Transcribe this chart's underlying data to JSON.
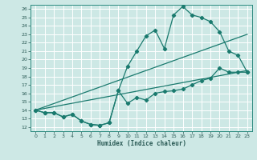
{
  "xlabel": "Humidex (Indice chaleur)",
  "bg_color": "#cde8e5",
  "grid_color": "#b0d8d4",
  "line_color": "#1a7a6e",
  "marker": "D",
  "markersize": 2.2,
  "linewidth": 0.9,
  "xlim": [
    -0.5,
    23.5
  ],
  "ylim": [
    11.5,
    26.5
  ],
  "xticks": [
    0,
    1,
    2,
    3,
    4,
    5,
    6,
    7,
    8,
    9,
    10,
    11,
    12,
    13,
    14,
    15,
    16,
    17,
    18,
    19,
    20,
    21,
    22,
    23
  ],
  "yticks": [
    12,
    13,
    14,
    15,
    16,
    17,
    18,
    19,
    20,
    21,
    22,
    23,
    24,
    25,
    26
  ],
  "series": [
    {
      "x": [
        0,
        1,
        2,
        3,
        4,
        5,
        6,
        7,
        8,
        9,
        10,
        11,
        12,
        13,
        14,
        15,
        16,
        17,
        18,
        19,
        20,
        21,
        22,
        23
      ],
      "y": [
        14.0,
        13.7,
        13.7,
        13.2,
        13.5,
        12.7,
        12.3,
        12.2,
        12.5,
        16.3,
        14.8,
        15.5,
        15.2,
        16.0,
        16.2,
        16.3,
        16.5,
        17.0,
        17.5,
        17.8,
        19.0,
        18.5,
        18.5,
        18.5
      ],
      "has_markers": true
    },
    {
      "x": [
        0,
        23
      ],
      "y": [
        14.0,
        18.7
      ],
      "has_markers": false
    },
    {
      "x": [
        0,
        23
      ],
      "y": [
        14.0,
        23.0
      ],
      "has_markers": false
    },
    {
      "x": [
        0,
        1,
        2,
        3,
        4,
        5,
        6,
        7,
        8,
        9,
        10,
        11,
        12,
        13,
        14,
        15,
        16,
        17,
        18,
        19,
        20,
        21,
        22,
        23
      ],
      "y": [
        14.0,
        13.7,
        13.7,
        13.2,
        13.5,
        12.7,
        12.3,
        12.2,
        12.5,
        16.3,
        19.2,
        21.0,
        22.8,
        23.5,
        21.3,
        25.3,
        26.3,
        25.3,
        25.0,
        24.5,
        23.3,
        21.0,
        20.5,
        18.5
      ],
      "has_markers": true
    }
  ]
}
